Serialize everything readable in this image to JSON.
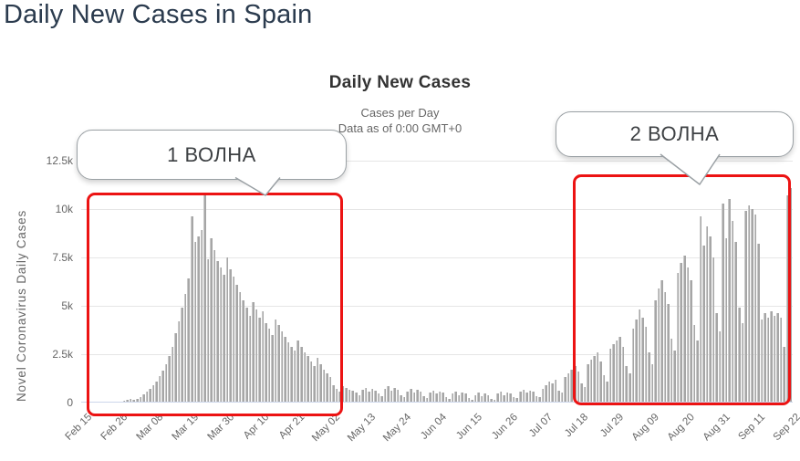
{
  "page": {
    "title": "Daily New Cases in Spain"
  },
  "chart": {
    "title": "Daily New Cases",
    "subtitle_line1": "Cases per Day",
    "subtitle_line2": "Data as of 0:00 GMT+0",
    "y_axis_title": "Novel Coronavirus Daily Cases"
  },
  "annotations": {
    "wave1_label": "1 ВОЛНА",
    "wave2_label": "2 ВОЛНА"
  },
  "colors": {
    "bar": "#a6a6a6",
    "highlight_box": "#ec1313",
    "grid": "#e6e6e6",
    "axis_line": "#ccd6eb",
    "muted_text": "#666666",
    "title_text": "#333333",
    "page_title_text": "#2b3b4e"
  },
  "chart_data": {
    "type": "bar",
    "title": "Daily New Cases",
    "subtitle": "Cases per Day — Data as of 0:00 GMT+0",
    "xlabel": "",
    "ylabel": "Novel Coronavirus Daily Cases",
    "ylim": [
      0,
      12500
    ],
    "grid": true,
    "legend": "none",
    "x_start_date": "Feb 15",
    "x_end_date": "Sep 22",
    "x_tick_every_n_days": 11,
    "x_tick_labels": [
      "Feb 15",
      "Feb 26",
      "Mar 08",
      "Mar 19",
      "Mar 30",
      "Apr 10",
      "Apr 21",
      "May 02",
      "May 13",
      "May 24",
      "Jun 04",
      "Jun 15",
      "Jun 26",
      "Jul 07",
      "Jul 18",
      "Jul 29",
      "Aug 09",
      "Aug 20",
      "Aug 31",
      "Sep 11",
      "Sep 22"
    ],
    "y_ticks": [
      {
        "value": 0,
        "label": "0"
      },
      {
        "value": 2500,
        "label": "2.5k"
      },
      {
        "value": 5000,
        "label": "5k"
      },
      {
        "value": 7500,
        "label": "7.5k"
      },
      {
        "value": 10000,
        "label": "10k"
      },
      {
        "value": 12500,
        "label": "12.5k"
      }
    ],
    "values_daily": [
      1,
      0,
      1,
      2,
      0,
      1,
      2,
      3,
      5,
      8,
      14,
      25,
      40,
      80,
      130,
      170,
      140,
      210,
      300,
      420,
      550,
      700,
      900,
      1100,
      1350,
      1650,
      2000,
      2400,
      2900,
      3600,
      4200,
      4900,
      5600,
      6400,
      9600,
      8300,
      8600,
      8900,
      10750,
      7400,
      8500,
      7900,
      7300,
      7000,
      6600,
      7500,
      6900,
      6500,
      6100,
      5700,
      5300,
      4900,
      4500,
      5200,
      4800,
      4400,
      4700,
      4100,
      3800,
      3500,
      4300,
      4000,
      3700,
      3400,
      3100,
      2900,
      2700,
      3200,
      2900,
      2600,
      2400,
      2100,
      1900,
      2300,
      2000,
      1700,
      1500,
      1300,
      900,
      700,
      550,
      850,
      750,
      650,
      600,
      500,
      400,
      650,
      750,
      550,
      700,
      600,
      450,
      350,
      700,
      850,
      600,
      750,
      650,
      400,
      300,
      550,
      700,
      500,
      650,
      550,
      350,
      250,
      500,
      600,
      450,
      550,
      500,
      300,
      200,
      450,
      550,
      400,
      500,
      450,
      250,
      150,
      400,
      500,
      350,
      450,
      400,
      200,
      150,
      450,
      550,
      400,
      500,
      450,
      300,
      250,
      550,
      650,
      500,
      600,
      550,
      350,
      300,
      700,
      900,
      1100,
      1000,
      1200,
      600,
      500,
      1300,
      1500,
      1700,
      1900,
      1600,
      1000,
      800,
      2000,
      2200,
      2400,
      2600,
      2100,
      1400,
      1100,
      2800,
      3000,
      3200,
      3400,
      2900,
      1900,
      1500,
      3800,
      4300,
      4800,
      4400,
      3900,
      2600,
      2000,
      5300,
      5900,
      6300,
      5700,
      5100,
      3300,
      2700,
      6700,
      7200,
      7600,
      7000,
      6300,
      4000,
      3200,
      9600,
      8100,
      9100,
      8600,
      7500,
      4600,
      3700,
      10300,
      8500,
      10500,
      9400,
      8300,
      4900,
      4100,
      9900,
      10200,
      10000,
      9700,
      8200,
      4300,
      4600,
      4400,
      4700,
      4500,
      4600,
      4400,
      2900,
      10700,
      11100
    ]
  }
}
